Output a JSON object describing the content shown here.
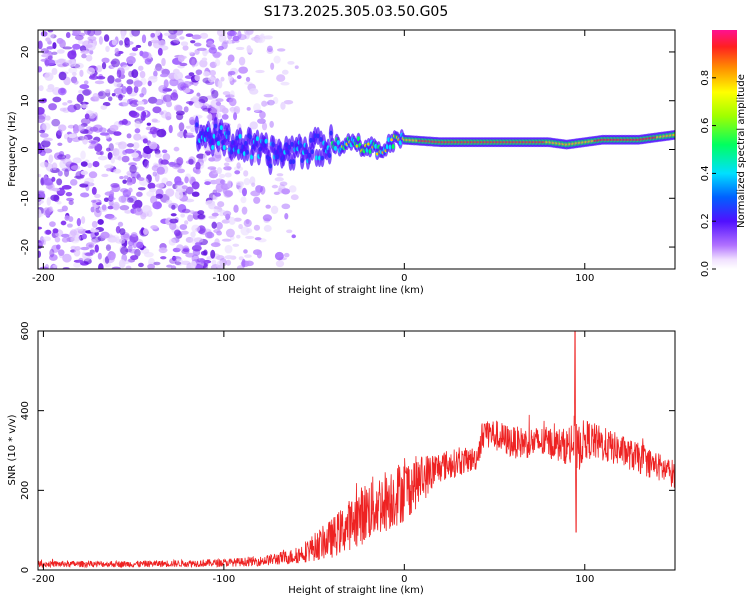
{
  "title": "S173.2025.305.03.50.G05",
  "chart_data": [
    {
      "type": "heatmap",
      "xlabel": "Height of straight line (km)",
      "ylabel": "Frequency (Hz)",
      "xlim": [
        -203,
        150
      ],
      "ylim": [
        -24.5,
        24.5
      ],
      "x_ticks": [
        -200,
        -100,
        0,
        100
      ],
      "y_ticks": [
        -20,
        -10,
        0,
        10,
        20
      ],
      "ridge": {
        "description": "dominant frequency ridge vs height",
        "points": [
          [
            -110,
            3
          ],
          [
            -90,
            1
          ],
          [
            -75,
            -1
          ],
          [
            -55,
            0
          ],
          [
            -40,
            1
          ],
          [
            -25,
            1
          ],
          [
            -15,
            0
          ],
          [
            -5,
            2
          ],
          [
            0,
            2
          ],
          [
            20,
            1.5
          ],
          [
            50,
            1.5
          ],
          [
            80,
            1.5
          ],
          [
            90,
            1
          ],
          [
            110,
            2
          ],
          [
            130,
            2
          ],
          [
            150,
            3
          ]
        ]
      },
      "colorbar": {
        "label": "Normalized spectral amplitude",
        "range": [
          0.0,
          1.0
        ],
        "ticks": [
          "0.0",
          "0.2",
          "0.4",
          "0.6",
          "0.8"
        ]
      }
    },
    {
      "type": "line",
      "xlabel": "Height of straight line (km)",
      "ylabel": "SNR (10 * v/v)",
      "xlim": [
        -203,
        150
      ],
      "ylim": [
        0,
        600
      ],
      "x_ticks": [
        -200,
        -100,
        0,
        100
      ],
      "y_ticks": [
        0,
        200,
        400,
        600
      ],
      "color": "#ee2222",
      "envelope": {
        "x": [
          -203,
          -150,
          -100,
          -80,
          -60,
          -40,
          -20,
          0,
          20,
          40,
          44,
          60,
          80,
          90,
          94,
          96,
          100,
          120,
          150
        ],
        "mean": [
          15,
          15,
          18,
          22,
          35,
          80,
          150,
          200,
          260,
          280,
          350,
          320,
          320,
          310,
          320,
          300,
          330,
          300,
          240
        ],
        "noise": [
          8,
          8,
          10,
          12,
          20,
          50,
          80,
          80,
          40,
          30,
          40,
          40,
          40,
          45,
          80,
          60,
          50,
          40,
          35
        ]
      },
      "spikes": [
        [
          94.6,
          600
        ],
        [
          95.2,
          95
        ]
      ]
    }
  ]
}
